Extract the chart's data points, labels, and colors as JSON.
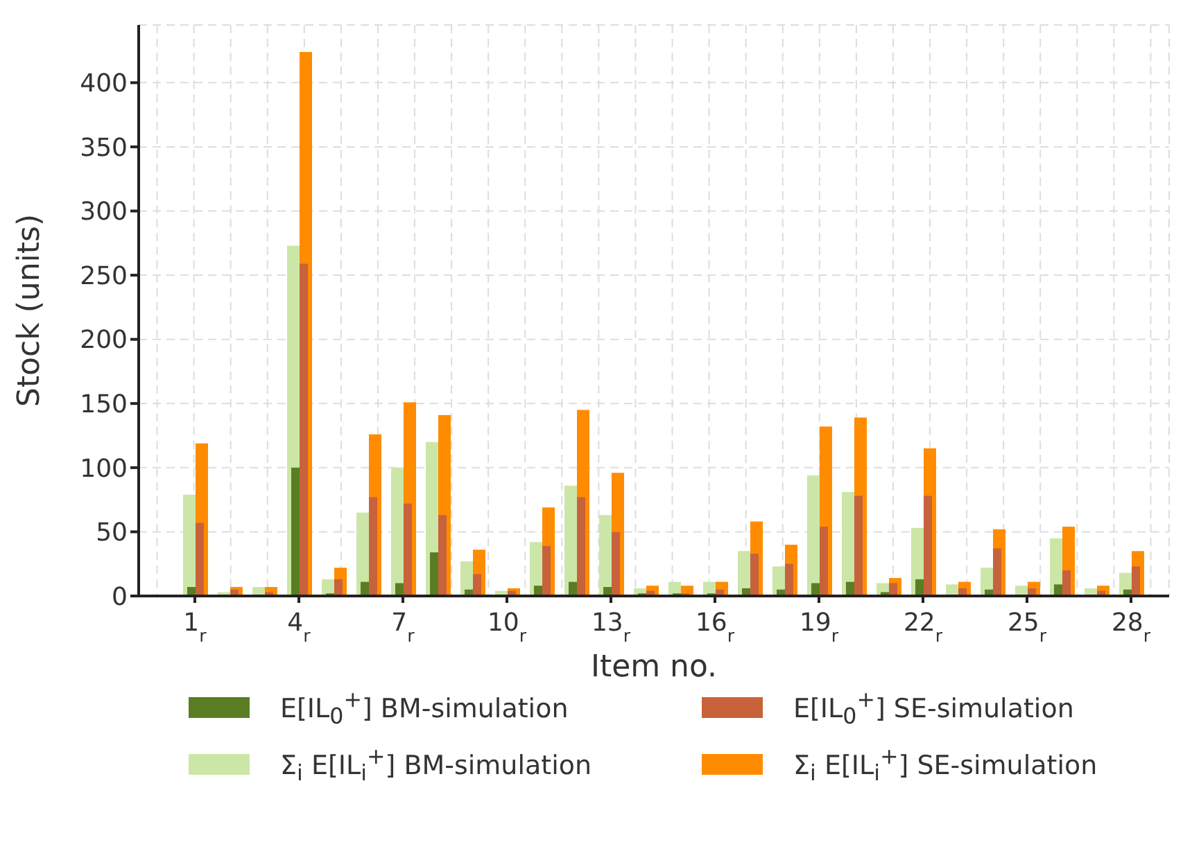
{
  "chart_data": {
    "type": "bar",
    "xlabel": "Item no.",
    "ylabel": "Stock (units)",
    "categories": [
      "1$_{r}$",
      null,
      null,
      "4$_{r}$",
      null,
      null,
      "7$_{r}$",
      null,
      null,
      "10$_{r}$",
      null,
      null,
      "13$_{r}$",
      null,
      null,
      "16$_{r}$",
      null,
      null,
      "19$_{r}$",
      null,
      null,
      "22$_{r}$",
      null,
      null,
      "25$_{r}$",
      null,
      null,
      "28$_{r}$"
    ],
    "series": [
      {
        "name": "E[IL$_{0}$$^{+}$] BM-simulation",
        "color": "#5a7d23",
        "values": [
          7,
          1,
          1,
          100,
          2,
          11,
          10,
          34,
          5,
          1,
          8,
          11,
          7,
          2,
          2,
          2,
          6,
          5,
          10,
          11,
          3,
          13,
          1,
          5,
          1,
          9,
          1,
          5
        ]
      },
      {
        "name": "Σ$_{i}$ E[IL$_{i}$$^{+}$] BM-simulation",
        "color": "#cce6a8",
        "values": [
          79,
          3,
          7,
          273,
          13,
          65,
          100,
          120,
          27,
          4,
          42,
          86,
          63,
          6,
          11,
          11,
          35,
          23,
          94,
          81,
          10,
          53,
          9,
          22,
          8,
          45,
          6,
          18
        ]
      },
      {
        "name": "E[IL$_{0}$$^{+}$] SE-simulation",
        "color": "#c8623a",
        "values": [
          57,
          5,
          3,
          259,
          13,
          77,
          72,
          63,
          17,
          4,
          39,
          77,
          50,
          4,
          2,
          5,
          33,
          25,
          54,
          78,
          10,
          78,
          6,
          37,
          6,
          20,
          4,
          23
        ]
      },
      {
        "name": "Σ$_{i}$ E[IL$_{i}$$^{+}$] SE-simulation",
        "color": "#ff8c00",
        "values": [
          119,
          7,
          7,
          424,
          22,
          126,
          151,
          141,
          36,
          6,
          69,
          145,
          96,
          8,
          8,
          11,
          58,
          40,
          132,
          139,
          14,
          115,
          11,
          52,
          11,
          54,
          8,
          35
        ]
      }
    ],
    "ylim": [
      0,
      445
    ],
    "yticks": [
      0,
      50,
      100,
      150,
      200,
      250,
      300,
      350,
      400
    ],
    "grid": true,
    "legend": "bottom"
  }
}
